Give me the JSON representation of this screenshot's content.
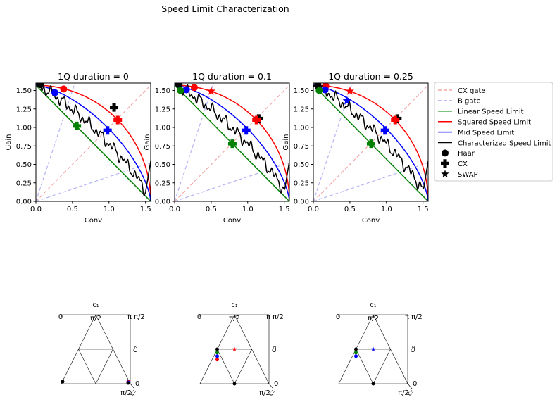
{
  "figure_title": "Speed Limit Characterization",
  "legend": {
    "placement": "right",
    "items": [
      {
        "label": "CX gate",
        "kind": "line",
        "color": "#f4a6a6",
        "dash": true
      },
      {
        "label": "B gate",
        "kind": "line",
        "color": "#b4b4f4",
        "dash": true
      },
      {
        "label": "Linear Speed Limit",
        "kind": "line",
        "color": "#008000",
        "dash": false
      },
      {
        "label": "Squared Speed Limit",
        "kind": "line",
        "color": "#ff0000",
        "dash": false
      },
      {
        "label": "Mid Speed Limit",
        "kind": "line",
        "color": "#0000ff",
        "dash": false
      },
      {
        "label": "Characterized Speed Limit",
        "kind": "line",
        "color": "#000000",
        "dash": false
      },
      {
        "label": "Haar",
        "kind": "marker",
        "marker": "circle"
      },
      {
        "label": "CX",
        "kind": "marker",
        "marker": "plus"
      },
      {
        "label": "SWAP",
        "kind": "marker",
        "marker": "star"
      }
    ]
  },
  "colors": {
    "red": "#ff0000",
    "green": "#008000",
    "blue": "#0000ff",
    "black": "#000000",
    "cx_gate": "#f4a6a6",
    "b_gate": "#b4b4f4"
  },
  "chart_data": [
    {
      "type": "line",
      "title": "1Q duration = 0",
      "xlabel": "Conv",
      "ylabel": "Gain",
      "xlim": [
        0,
        1.5708
      ],
      "ylim": [
        0,
        1.6
      ],
      "xticks": [
        "0.0",
        "0.5",
        "1.0",
        "1.5"
      ],
      "yticks": [
        "0.00",
        "0.25",
        "0.50",
        "0.75",
        "1.00",
        "1.25",
        "1.50"
      ],
      "series": [
        {
          "name": "CX gate",
          "curve": "y = x"
        },
        {
          "name": "B gate",
          "curve": "y = 3x and y = x/3"
        },
        {
          "name": "Linear Speed Limit",
          "curve": "x + y = pi/2"
        },
        {
          "name": "Squared Speed Limit",
          "curve": "x^2 + y^2 = (pi/2)^2"
        },
        {
          "name": "Mid Speed Limit",
          "curve": "x^1.5 + y^1.5 = (pi/2)^1.5"
        },
        {
          "name": "Characterized Speed Limit",
          "curve": "noisy empirical boundary"
        }
      ],
      "points": [
        {
          "name": "Haar",
          "marker": "circle",
          "color": "black",
          "x": 0.06,
          "y": 1.58
        },
        {
          "name": "Haar",
          "marker": "circle",
          "color": "red",
          "x": 0.38,
          "y": 1.52
        },
        {
          "name": "Haar",
          "marker": "circle",
          "color": "blue",
          "x": 0.26,
          "y": 1.47
        },
        {
          "name": "CX",
          "marker": "plus",
          "color": "black",
          "x": 1.07,
          "y": 1.27
        },
        {
          "name": "CX",
          "marker": "plus",
          "color": "red",
          "x": 1.12,
          "y": 1.1
        },
        {
          "name": "CX",
          "marker": "plus",
          "color": "blue",
          "x": 0.98,
          "y": 0.96
        },
        {
          "name": "CX",
          "marker": "plus",
          "color": "green",
          "x": 0.56,
          "y": 1.02
        }
      ]
    },
    {
      "type": "line",
      "title": "1Q duration = 0.1",
      "xlabel": "Conv",
      "ylabel": "Gain",
      "xlim": [
        0,
        1.5708
      ],
      "ylim": [
        0,
        1.6
      ],
      "xticks": [
        "0.0",
        "0.5",
        "1.0",
        "1.5"
      ],
      "yticks": [
        "0.00",
        "0.25",
        "0.50",
        "0.75",
        "1.00",
        "1.25",
        "1.50"
      ],
      "series": [
        {
          "name": "CX gate",
          "curve": "y = x"
        },
        {
          "name": "B gate",
          "curve": "y = 3x and y = x/3"
        },
        {
          "name": "Linear Speed Limit",
          "curve": "x + y = pi/2"
        },
        {
          "name": "Squared Speed Limit",
          "curve": "x^2 + y^2 = (pi/2)^2"
        },
        {
          "name": "Mid Speed Limit",
          "curve": "x^1.5 + y^1.5 = (pi/2)^1.5"
        },
        {
          "name": "Characterized Speed Limit",
          "curve": "noisy empirical boundary"
        }
      ],
      "points": [
        {
          "name": "Haar",
          "marker": "circle",
          "color": "black",
          "x": 0.06,
          "y": 1.58
        },
        {
          "name": "Haar",
          "marker": "circle",
          "color": "red",
          "x": 0.27,
          "y": 1.54
        },
        {
          "name": "Haar",
          "marker": "circle",
          "color": "blue",
          "x": 0.16,
          "y": 1.51
        },
        {
          "name": "Haar",
          "marker": "circle",
          "color": "green",
          "x": 0.08,
          "y": 1.5
        },
        {
          "name": "SWAP",
          "marker": "star",
          "color": "red",
          "x": 0.5,
          "y": 1.49
        },
        {
          "name": "CX",
          "marker": "plus",
          "color": "black",
          "x": 1.15,
          "y": 1.12
        },
        {
          "name": "CX",
          "marker": "plus",
          "color": "red",
          "x": 1.12,
          "y": 1.1
        },
        {
          "name": "CX",
          "marker": "plus",
          "color": "blue",
          "x": 0.98,
          "y": 0.96
        },
        {
          "name": "CX",
          "marker": "plus",
          "color": "green",
          "x": 0.79,
          "y": 0.78
        }
      ]
    },
    {
      "type": "line",
      "title": "1Q duration = 0.25",
      "xlabel": "Conv",
      "ylabel": "Gain",
      "xlim": [
        0,
        1.5708
      ],
      "ylim": [
        0,
        1.6
      ],
      "xticks": [
        "0.0",
        "0.5",
        "1.0",
        "1.5"
      ],
      "yticks": [
        "0.00",
        "0.25",
        "0.50",
        "0.75",
        "1.00",
        "1.25",
        "1.50"
      ],
      "series": [
        {
          "name": "CX gate",
          "curve": "y = x"
        },
        {
          "name": "B gate",
          "curve": "y = 3x and y = x/3"
        },
        {
          "name": "Linear Speed Limit",
          "curve": "x + y = pi/2"
        },
        {
          "name": "Squared Speed Limit",
          "curve": "x^2 + y^2 = (pi/2)^2"
        },
        {
          "name": "Mid Speed Limit",
          "curve": "x^1.5 + y^1.5 = (pi/2)^1.5"
        },
        {
          "name": "Characterized Speed Limit",
          "curve": "noisy empirical boundary"
        }
      ],
      "points": [
        {
          "name": "Haar",
          "marker": "circle",
          "color": "black",
          "x": 0.06,
          "y": 1.58
        },
        {
          "name": "Haar",
          "marker": "circle",
          "color": "red",
          "x": 0.17,
          "y": 1.56
        },
        {
          "name": "Haar",
          "marker": "circle",
          "color": "blue",
          "x": 0.16,
          "y": 1.51
        },
        {
          "name": "Haar",
          "marker": "circle",
          "color": "green",
          "x": 0.08,
          "y": 1.5
        },
        {
          "name": "SWAP",
          "marker": "star",
          "color": "red",
          "x": 0.5,
          "y": 1.49
        },
        {
          "name": "SWAP",
          "marker": "star",
          "color": "blue",
          "x": 0.46,
          "y": 1.36
        },
        {
          "name": "CX",
          "marker": "plus",
          "color": "black",
          "x": 1.15,
          "y": 1.12
        },
        {
          "name": "CX",
          "marker": "plus",
          "color": "red",
          "x": 1.12,
          "y": 1.1
        },
        {
          "name": "CX",
          "marker": "plus",
          "color": "blue",
          "x": 0.98,
          "y": 0.96
        },
        {
          "name": "CX",
          "marker": "plus",
          "color": "green",
          "x": 0.79,
          "y": 0.78
        }
      ]
    }
  ],
  "weyl_chambers": [
    {
      "labels": {
        "c1": "c₁",
        "c2": "c₂",
        "c3": "c₃",
        "zero_left": "0",
        "zero_right": "0",
        "pi2": "π/2",
        "pi": "π",
        "pi2_right": "π/2",
        "pi2_bottom": "π/2"
      },
      "points": [
        {
          "color": "black",
          "u": 0.02,
          "v": 0.03
        },
        {
          "color": "red",
          "u": 0.97,
          "v": 0.03
        },
        {
          "color": "blue",
          "u": 0.97,
          "v": 0.02
        },
        {
          "color": "black",
          "u": 0.97,
          "v": 0.01
        }
      ]
    },
    {
      "labels": {
        "c1": "c₁",
        "c2": "c₂",
        "c3": "c₃",
        "zero_left": "0",
        "zero_right": "0",
        "pi2": "π/2",
        "pi": "π",
        "pi2_right": "π/2",
        "pi2_bottom": "π/2"
      },
      "points": [
        {
          "color": "black",
          "u": 0.25,
          "v": 0.5
        },
        {
          "color": "green",
          "u": 0.25,
          "v": 0.45
        },
        {
          "color": "blue",
          "u": 0.25,
          "v": 0.4
        },
        {
          "color": "red",
          "u": 0.25,
          "v": 0.35
        },
        {
          "color": "red",
          "u": 0.5,
          "v": 0.5,
          "marker": "star"
        },
        {
          "color": "black",
          "u": 0.5,
          "v": 0.0
        }
      ]
    },
    {
      "labels": {
        "c1": "c₁",
        "c2": "c₂",
        "c3": "c₃",
        "zero_left": "0",
        "zero_right": "0",
        "pi2": "π/2",
        "pi": "π",
        "pi2_right": "π/2",
        "pi2_bottom": "π/2"
      },
      "points": [
        {
          "color": "black",
          "u": 0.25,
          "v": 0.5
        },
        {
          "color": "green",
          "u": 0.25,
          "v": 0.45
        },
        {
          "color": "blue",
          "u": 0.25,
          "v": 0.4
        },
        {
          "color": "blue",
          "u": 0.5,
          "v": 0.5,
          "marker": "star"
        },
        {
          "color": "black",
          "u": 0.5,
          "v": 0.0
        }
      ]
    }
  ]
}
